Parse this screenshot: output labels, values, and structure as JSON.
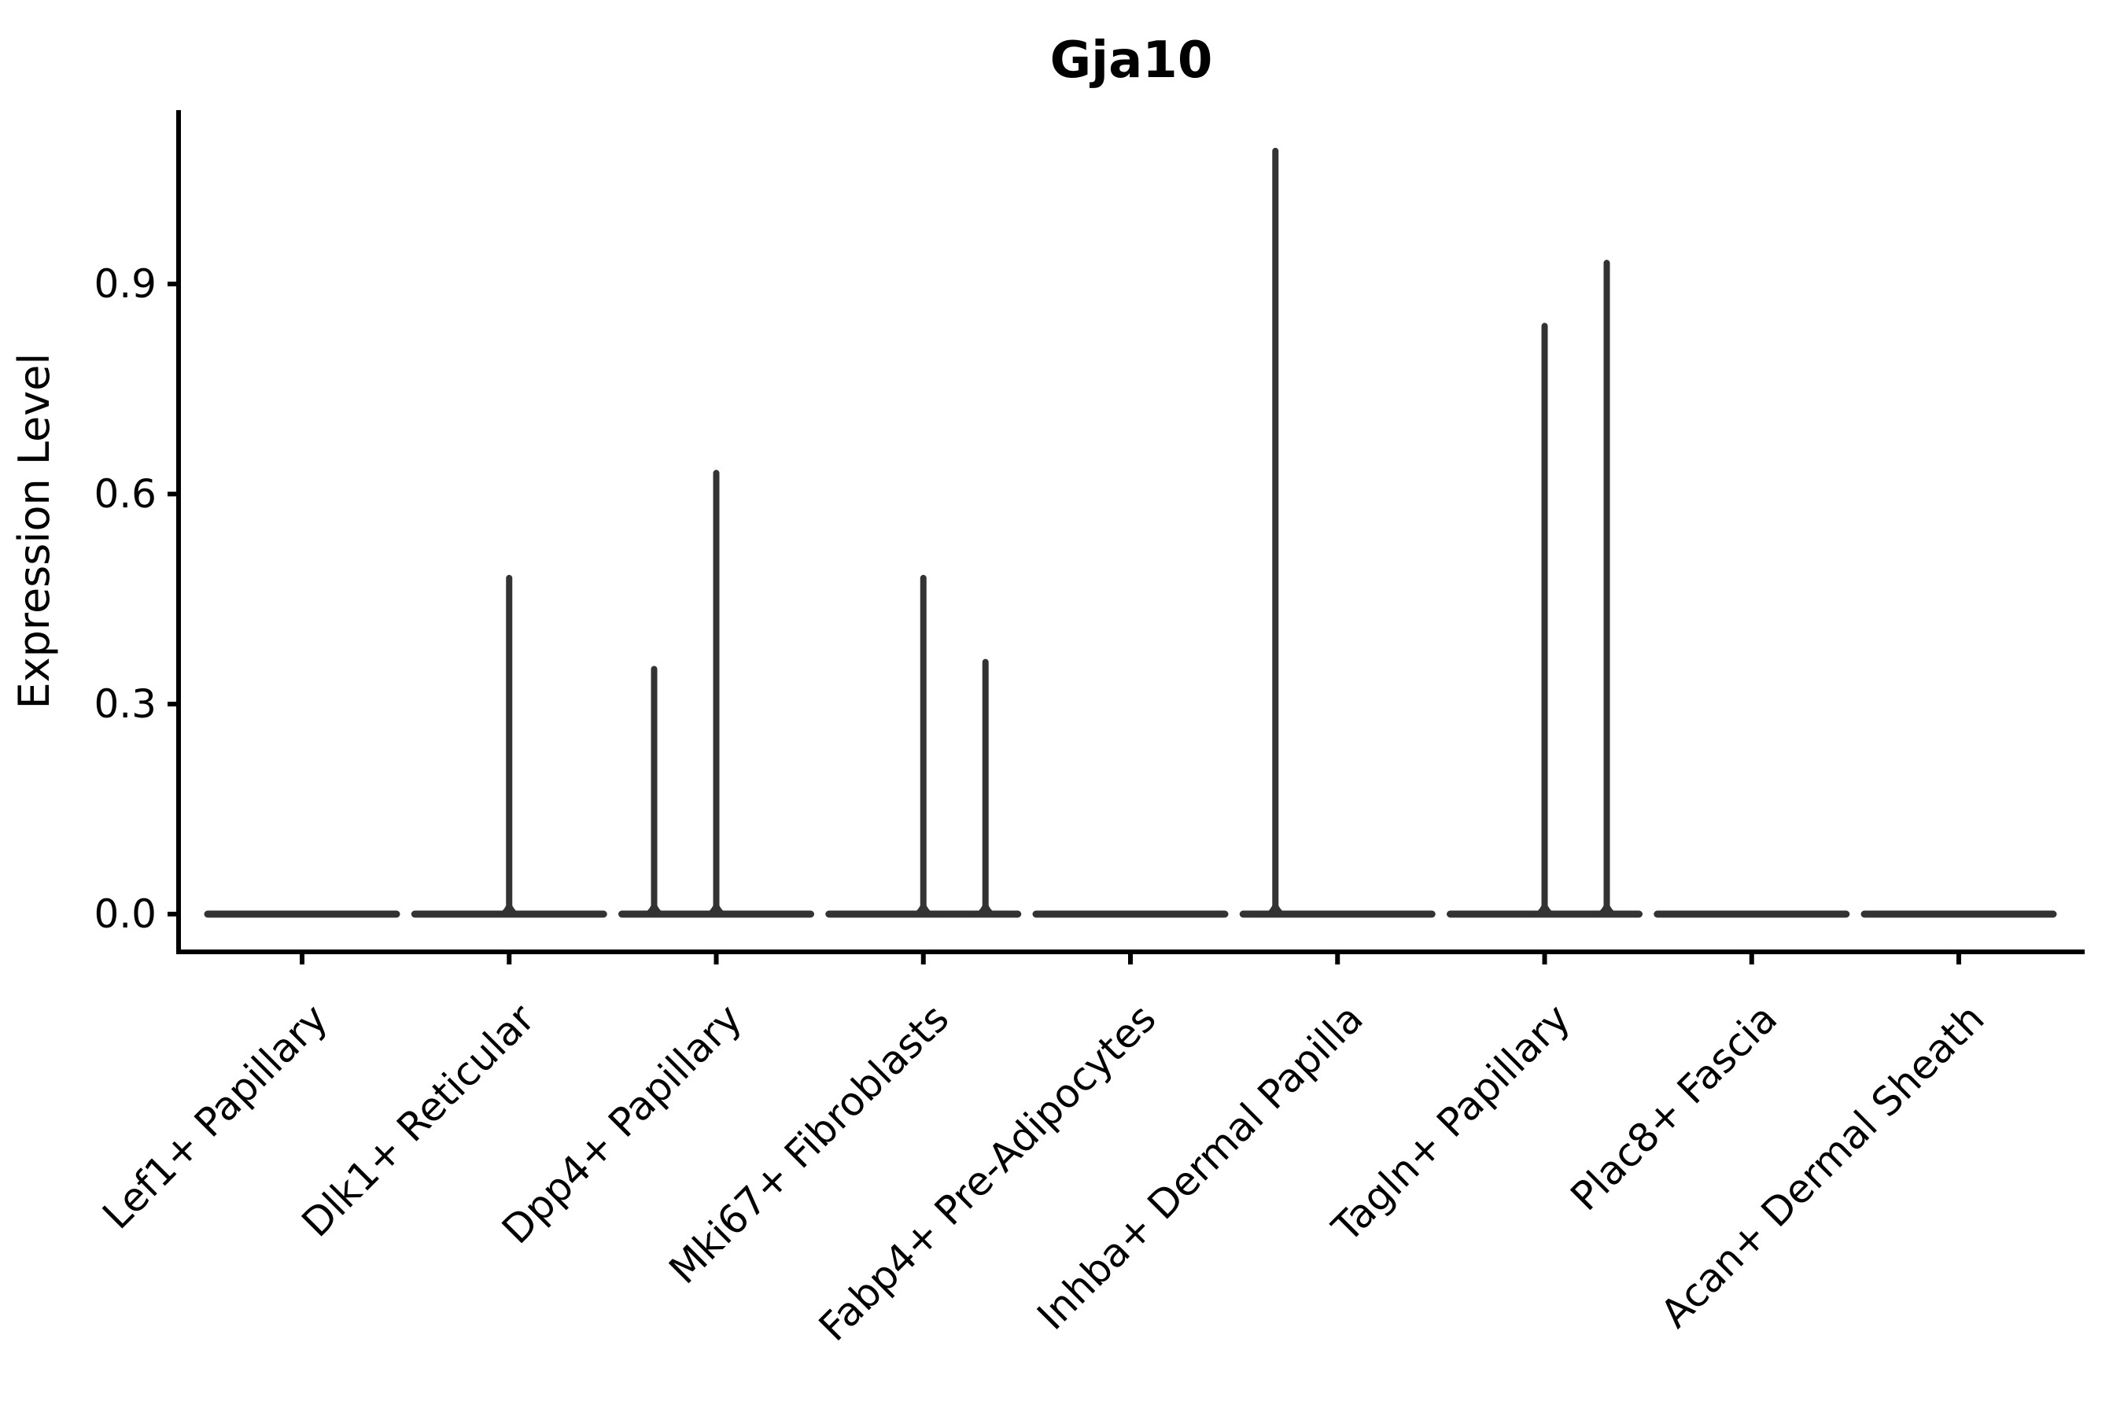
{
  "chart_data": {
    "type": "violin",
    "title": "Gja10",
    "ylabel": "Expression Level",
    "xlabel": "",
    "ytick_labels": [
      "0.0",
      "0.3",
      "0.6",
      "0.9"
    ],
    "ytick_values": [
      0.0,
      0.3,
      0.6,
      0.9
    ],
    "ylim": [
      -0.054,
      1.152
    ],
    "grid": false,
    "legend_position": "none",
    "categories": [
      "Lef1+ Papillary",
      "Dlk1+ Reticular",
      "Dpp4+ Papillary",
      "Mki67+ Fibroblasts",
      "Fabp4+ Pre-Adipocytes",
      "Inhba+ Dermal Papilla",
      "Tagln+ Papillary",
      "Plac8+ Fascia",
      "Acan+ Dermal Sheath"
    ],
    "violins": [
      {
        "baseline_value": 0.0,
        "spikes": []
      },
      {
        "baseline_value": 0.0,
        "spikes": [
          {
            "pos": 0.0,
            "max": 0.48
          }
        ]
      },
      {
        "baseline_value": 0.0,
        "spikes": [
          {
            "pos": -0.3,
            "max": 0.35
          },
          {
            "pos": 0.0,
            "max": 0.63
          }
        ]
      },
      {
        "baseline_value": 0.0,
        "spikes": [
          {
            "pos": 0.0,
            "max": 0.48
          },
          {
            "pos": 0.3,
            "max": 0.36
          }
        ]
      },
      {
        "baseline_value": 0.0,
        "spikes": []
      },
      {
        "baseline_value": 0.0,
        "spikes": [
          {
            "pos": -0.3,
            "max": 1.09
          }
        ]
      },
      {
        "baseline_value": 0.0,
        "spikes": [
          {
            "pos": 0.0,
            "max": 0.84
          },
          {
            "pos": 0.3,
            "max": 0.93
          }
        ]
      },
      {
        "baseline_value": 0.0,
        "spikes": []
      },
      {
        "baseline_value": 0.0,
        "spikes": []
      }
    ],
    "colors": {
      "violin_line": "#333333",
      "axis": "#000000",
      "text": "#000000",
      "background": "#ffffff"
    }
  }
}
